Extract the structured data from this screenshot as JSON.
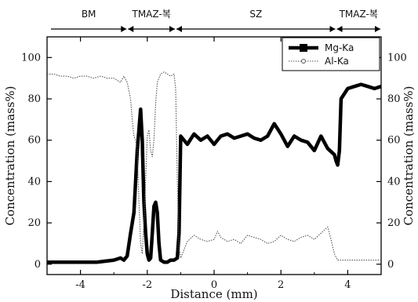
{
  "chart_data": {
    "type": "line",
    "xlabel": "Distance (mm)",
    "ylabel_left": "Concentration (mass%)",
    "ylabel_right": "Concentration (mass%)",
    "xlim": [
      -5,
      5
    ],
    "ylim": [
      -5,
      110
    ],
    "x_ticks": [
      -4,
      -2,
      0,
      2,
      4
    ],
    "x_tick_labels": [
      "-4",
      "-2",
      "0",
      "2",
      "4"
    ],
    "y_ticks": [
      0,
      20,
      40,
      60,
      80,
      100
    ],
    "y_tick_labels": [
      "0",
      "20",
      "40",
      "60",
      "80",
      "100"
    ],
    "legend_position": "top-right",
    "zones": [
      {
        "label": "BM",
        "x_start": -5,
        "x_end": -2.6
      },
      {
        "label": "TMAZ-복",
        "x_start": -2.6,
        "x_end": -1.15
      },
      {
        "label": "SZ",
        "x_start": -1.15,
        "x_end": 3.65
      },
      {
        "label": "TMAZ-복",
        "x_start": 3.65,
        "x_end": 5
      }
    ],
    "series": [
      {
        "name": "Mg-Ka",
        "color": "#000000",
        "style": "thick-square",
        "x": [
          -5.0,
          -4.5,
          -4.0,
          -3.5,
          -3.0,
          -2.8,
          -2.7,
          -2.6,
          -2.5,
          -2.4,
          -2.3,
          -2.2,
          -2.15,
          -2.1,
          -2.05,
          -2.0,
          -1.95,
          -1.9,
          -1.85,
          -1.8,
          -1.75,
          -1.7,
          -1.65,
          -1.6,
          -1.5,
          -1.4,
          -1.3,
          -1.2,
          -1.1,
          -1.05,
          -1.0,
          -0.8,
          -0.6,
          -0.4,
          -0.2,
          0.0,
          0.2,
          0.4,
          0.6,
          0.8,
          1.0,
          1.2,
          1.4,
          1.6,
          1.8,
          2.0,
          2.2,
          2.4,
          2.6,
          2.8,
          3.0,
          3.2,
          3.4,
          3.6,
          3.65,
          3.7,
          3.75,
          3.8,
          4.0,
          4.2,
          4.4,
          4.6,
          4.8,
          5.0
        ],
        "values": [
          1,
          1,
          1,
          1,
          2,
          3,
          2,
          4,
          15,
          25,
          55,
          75,
          60,
          30,
          15,
          5,
          2,
          3,
          15,
          28,
          30,
          25,
          10,
          2,
          1,
          1,
          2,
          2,
          3,
          15,
          62,
          58,
          63,
          60,
          62,
          58,
          62,
          63,
          61,
          62,
          63,
          61,
          60,
          62,
          68,
          63,
          57,
          62,
          60,
          59,
          55,
          62,
          56,
          53,
          50,
          48,
          55,
          80,
          85,
          86,
          87,
          86,
          85,
          86
        ]
      },
      {
        "name": "Al-Ka",
        "color": "#555555",
        "style": "dotted",
        "x": [
          -5.0,
          -4.8,
          -4.6,
          -4.4,
          -4.2,
          -4.0,
          -3.8,
          -3.6,
          -3.4,
          -3.2,
          -3.0,
          -2.8,
          -2.7,
          -2.6,
          -2.5,
          -2.45,
          -2.4,
          -2.35,
          -2.3,
          -2.25,
          -2.2,
          -2.15,
          -2.1,
          -2.05,
          -2.0,
          -1.95,
          -1.9,
          -1.85,
          -1.8,
          -1.75,
          -1.7,
          -1.65,
          -1.6,
          -1.5,
          -1.4,
          -1.3,
          -1.2,
          -1.15,
          -1.1,
          -1.05,
          -1.0,
          -0.8,
          -0.6,
          -0.4,
          -0.2,
          0.0,
          0.1,
          0.2,
          0.4,
          0.6,
          0.8,
          1.0,
          1.2,
          1.4,
          1.6,
          1.8,
          2.0,
          2.2,
          2.4,
          2.6,
          2.8,
          3.0,
          3.2,
          3.4,
          3.5,
          3.6,
          3.7,
          3.8,
          4.0,
          4.2,
          4.4,
          4.6,
          4.8,
          5.0
        ],
        "values": [
          92,
          92,
          91,
          91,
          90,
          91,
          91,
          90,
          91,
          90,
          90,
          88,
          91,
          88,
          80,
          70,
          62,
          60,
          55,
          30,
          10,
          5,
          20,
          40,
          62,
          65,
          55,
          52,
          60,
          78,
          88,
          90,
          92,
          93,
          92,
          91,
          92,
          85,
          40,
          8,
          3,
          11,
          14,
          12,
          11,
          12,
          16,
          13,
          11,
          12,
          10,
          14,
          13,
          12,
          10,
          11,
          14,
          12,
          11,
          13,
          14,
          12,
          15,
          18,
          12,
          5,
          2,
          2,
          2,
          2,
          2,
          2,
          2,
          2
        ]
      }
    ]
  }
}
